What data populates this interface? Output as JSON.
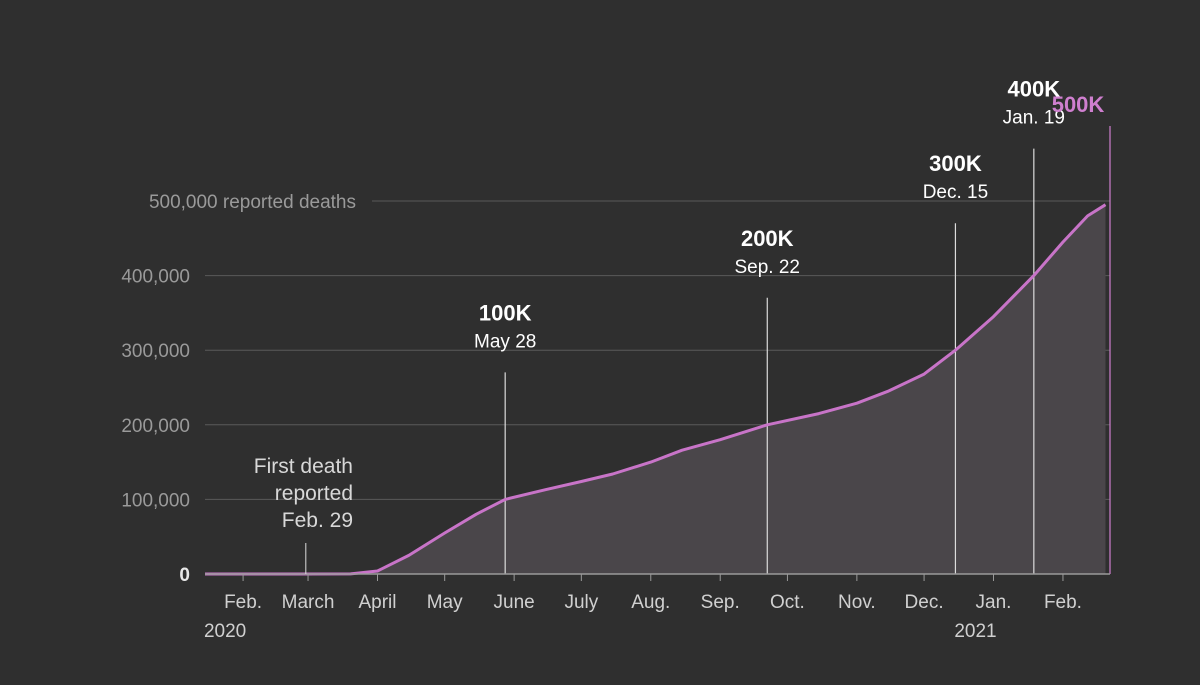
{
  "chart_data": {
    "type": "area",
    "ylim": [
      0,
      500000
    ],
    "xlim": [
      "2020-01-15",
      "2021-02-22"
    ],
    "grid": true,
    "colors": {
      "line": "#c874c8",
      "area": "#4a464a",
      "milestone": "#dcdcdc",
      "final": "#cf7fcf",
      "grid": "#5a5a5a"
    },
    "y_ticks": [
      {
        "value": 0,
        "label": "0"
      },
      {
        "value": 100000,
        "label": "100,000"
      },
      {
        "value": 200000,
        "label": "200,000"
      },
      {
        "value": 300000,
        "label": "300,000"
      },
      {
        "value": 400000,
        "label": "400,000"
      },
      {
        "value": 500000,
        "label": "500,000 reported deaths"
      }
    ],
    "x_ticks": [
      {
        "date": "2020-02-01",
        "label": "Feb.",
        "sub": "2020"
      },
      {
        "date": "2020-03-01",
        "label": "March"
      },
      {
        "date": "2020-04-01",
        "label": "April"
      },
      {
        "date": "2020-05-01",
        "label": "May"
      },
      {
        "date": "2020-06-01",
        "label": "June"
      },
      {
        "date": "2020-07-01",
        "label": "July"
      },
      {
        "date": "2020-08-01",
        "label": "Aug."
      },
      {
        "date": "2020-09-01",
        "label": "Sep."
      },
      {
        "date": "2020-10-01",
        "label": "Oct."
      },
      {
        "date": "2020-11-01",
        "label": "Nov."
      },
      {
        "date": "2020-12-01",
        "label": "Dec."
      },
      {
        "date": "2021-01-01",
        "label": "Jan.",
        "sub": "2021"
      },
      {
        "date": "2021-02-01",
        "label": "Feb."
      }
    ],
    "series": [
      {
        "points": [
          [
            "2020-01-15",
            0
          ],
          [
            "2020-02-29",
            0
          ],
          [
            "2020-03-20",
            200
          ],
          [
            "2020-04-01",
            4000
          ],
          [
            "2020-04-15",
            25000
          ],
          [
            "2020-05-01",
            55000
          ],
          [
            "2020-05-15",
            80000
          ],
          [
            "2020-05-28",
            100000
          ],
          [
            "2020-06-15",
            113000
          ],
          [
            "2020-07-01",
            124000
          ],
          [
            "2020-07-15",
            134000
          ],
          [
            "2020-08-01",
            150000
          ],
          [
            "2020-08-15",
            166000
          ],
          [
            "2020-09-01",
            180000
          ],
          [
            "2020-09-22",
            200000
          ],
          [
            "2020-10-15",
            215000
          ],
          [
            "2020-11-01",
            229000
          ],
          [
            "2020-11-15",
            245000
          ],
          [
            "2020-12-01",
            268000
          ],
          [
            "2020-12-15",
            300000
          ],
          [
            "2021-01-01",
            345000
          ],
          [
            "2021-01-19",
            400000
          ],
          [
            "2021-02-01",
            445000
          ],
          [
            "2021-02-12",
            480000
          ],
          [
            "2021-02-20",
            495000
          ]
        ]
      }
    ],
    "milestones": [
      {
        "date": "2020-05-28",
        "y": 100000,
        "value": "100K",
        "label": "May 28"
      },
      {
        "date": "2020-09-22",
        "y": 200000,
        "value": "200K",
        "label": "Sep. 22"
      },
      {
        "date": "2020-12-15",
        "y": 300000,
        "value": "300K",
        "label": "Dec. 15"
      },
      {
        "date": "2021-01-19",
        "y": 400000,
        "value": "400K",
        "label": "Jan. 19"
      },
      {
        "date": "2021-02-22",
        "y": 500000,
        "value": "500K",
        "label": ""
      }
    ],
    "annotations": [
      {
        "date": "2020-02-29",
        "lines": [
          "First death",
          "reported",
          "Feb. 29"
        ]
      }
    ]
  }
}
